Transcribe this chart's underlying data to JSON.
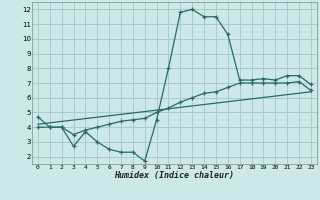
{
  "xlabel": "Humidex (Indice chaleur)",
  "bg_color": "#cce8e8",
  "grid_color": "#a8cccc",
  "line_color": "#2a6b62",
  "xlim": [
    -0.5,
    23.5
  ],
  "ylim": [
    1.5,
    12.5
  ],
  "xticks": [
    0,
    1,
    2,
    3,
    4,
    5,
    6,
    7,
    8,
    9,
    10,
    11,
    12,
    13,
    14,
    15,
    16,
    17,
    18,
    19,
    20,
    21,
    22,
    23
  ],
  "yticks": [
    2,
    3,
    4,
    5,
    6,
    7,
    8,
    9,
    10,
    11,
    12
  ],
  "line1_x": [
    0,
    1,
    2,
    3,
    4,
    5,
    6,
    7,
    8,
    9,
    10,
    11,
    12,
    13,
    14,
    15,
    16,
    17,
    18,
    19,
    20,
    21,
    22,
    23
  ],
  "line1_y": [
    4.7,
    4.0,
    4.0,
    2.7,
    3.7,
    3.0,
    2.5,
    2.3,
    2.3,
    1.7,
    4.5,
    8.0,
    11.8,
    12.0,
    11.5,
    11.5,
    10.3,
    7.2,
    7.2,
    7.3,
    7.2,
    7.5,
    7.5,
    6.9
  ],
  "line2_x": [
    0,
    1,
    2,
    3,
    4,
    5,
    6,
    7,
    8,
    9,
    10,
    11,
    12,
    13,
    14,
    15,
    16,
    17,
    18,
    19,
    20,
    21,
    22,
    23
  ],
  "line2_y": [
    4.0,
    4.0,
    4.0,
    3.5,
    3.8,
    4.0,
    4.2,
    4.4,
    4.5,
    4.6,
    5.0,
    5.3,
    5.7,
    6.0,
    6.3,
    6.4,
    6.7,
    7.0,
    7.0,
    7.0,
    7.0,
    7.0,
    7.1,
    6.5
  ],
  "line3_x": [
    0,
    23
  ],
  "line3_y": [
    4.2,
    6.4
  ]
}
